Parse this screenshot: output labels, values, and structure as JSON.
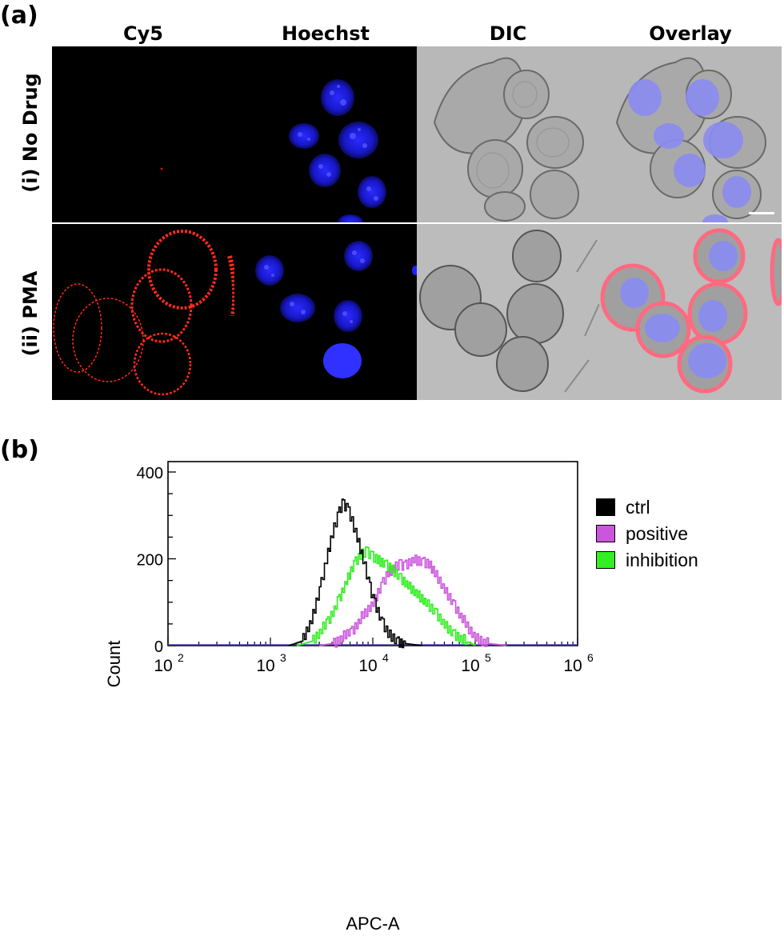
{
  "figure": {
    "panel_a_label": "(a)",
    "panel_b_label": "(b)",
    "columns": [
      "Cy5",
      "Hoechst",
      "DIC",
      "Overlay"
    ],
    "rows": [
      "(i) No Drug",
      "(ii) PMA"
    ],
    "colors": {
      "cy5": "#ff2a1a",
      "hoechst": "#2020ff",
      "dic": "#b4b4b4",
      "nucleus_overlay": "#8a8cf0",
      "membrane_overlay": "#ff6a80",
      "scale_bar": "#ffffff"
    }
  },
  "chart_data": {
    "type": "line",
    "title": "",
    "xlabel": "APC-A",
    "ylabel": "Count",
    "xscale": "log",
    "xlim": [
      100,
      1000000
    ],
    "ylim": [
      0,
      400
    ],
    "x_ticks": [
      {
        "base": "10",
        "exp": "2"
      },
      {
        "base": "10",
        "exp": "3"
      },
      {
        "base": "10",
        "exp": "4"
      },
      {
        "base": "10",
        "exp": "5"
      },
      {
        "base": "10",
        "exp": "6"
      }
    ],
    "y_ticks": [
      "0",
      "200",
      "400"
    ],
    "legend_position": "right",
    "series": [
      {
        "name": "ctrl",
        "color": "#000000",
        "x": [
          1500,
          2000,
          2500,
          3000,
          3500,
          4000,
          4500,
          5000,
          5500,
          6000,
          7000,
          8000,
          9000,
          10000,
          12000,
          14000,
          17000,
          20000,
          30000
        ],
        "y": [
          0,
          10,
          60,
          130,
          200,
          260,
          300,
          330,
          320,
          300,
          250,
          200,
          150,
          110,
          60,
          30,
          12,
          5,
          0
        ]
      },
      {
        "name": "positive",
        "color": "#cc55dd",
        "x": [
          3000,
          4000,
          6000,
          8000,
          10000,
          12000,
          14000,
          16000,
          18000,
          20000,
          25000,
          30000,
          35000,
          40000,
          50000,
          60000,
          80000,
          100000,
          130000,
          200000
        ],
        "y": [
          0,
          5,
          30,
          70,
          100,
          140,
          170,
          180,
          190,
          185,
          200,
          195,
          190,
          170,
          130,
          100,
          50,
          20,
          5,
          0
        ]
      },
      {
        "name": "inhibition",
        "color": "#33ee22",
        "x": [
          1800,
          2500,
          3500,
          4500,
          5500,
          6500,
          7500,
          8500,
          9500,
          11000,
          13000,
          15000,
          18000,
          22000,
          27000,
          33000,
          40000,
          50000,
          60000,
          80000,
          100000
        ],
        "y": [
          0,
          10,
          50,
          100,
          150,
          190,
          210,
          220,
          210,
          200,
          190,
          180,
          160,
          140,
          120,
          100,
          80,
          50,
          30,
          10,
          0
        ]
      }
    ]
  }
}
